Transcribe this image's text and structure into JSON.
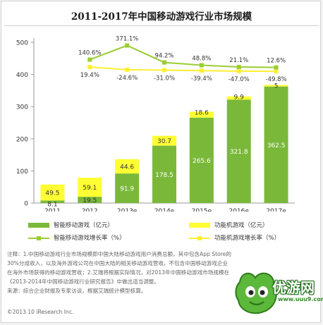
{
  "title": "2011-2017年中国移动游戏行业市场规模",
  "chart_data": {
    "type": "bar",
    "categories": [
      "2011",
      "2012",
      "2013e",
      "2014e",
      "2015e",
      "2016e",
      "2017e"
    ],
    "ylim": [
      0,
      500
    ],
    "yticks": [
      0,
      100,
      200,
      300,
      400,
      500
    ],
    "series": [
      {
        "name": "智能移动游戏（亿元）",
        "values": [
          8.1,
          19.5,
          91.9,
          178.5,
          265.6,
          321.8,
          362.5
        ],
        "color": "#7ab83a",
        "kind": "bar"
      },
      {
        "name": "功能机游戏（亿元）",
        "values": [
          49.5,
          59.1,
          44.6,
          30.7,
          18.6,
          9.9,
          5.0
        ],
        "color": "#ffff33",
        "kind": "bar"
      },
      {
        "name": "智能移动游戏增长率（%）",
        "labels": [
          "140.6%",
          "371.1%",
          "94.2%",
          "48.8%",
          "21.1%",
          "12.6%"
        ],
        "color": "#9acd32",
        "kind": "line"
      },
      {
        "name": "功能机游戏增长率（%）",
        "labels": [
          "19.4%",
          "-24.6%",
          "-31.0%",
          "-39.4%",
          "-47.0%",
          "-49.8%"
        ],
        "color": "#ffee33",
        "kind": "line"
      }
    ]
  },
  "footnote": "注释：1.中国移动游戏行业市场规模即中国大陆移动游戏用户消费总额，其中包含App Store的30%分成收入，以及海外游戏公司在中国大陆的相关移动游戏营收，不包含中国移动游戏企业在海外市场获得的移动游戏营收；2.艾瑞将根据实际情况，对2013年中国移动游戏市场规模在《2013-2014年中国移动游戏行业研究报告》中做出适当调整。",
  "source": "来源：综合企业财报及专家访谈，根据艾瑞统计模型核算。",
  "copyright": "©2013.10 iResearch Inc.",
  "watermark": {
    "text": "优游网",
    "url": "www.uuu9.com"
  }
}
